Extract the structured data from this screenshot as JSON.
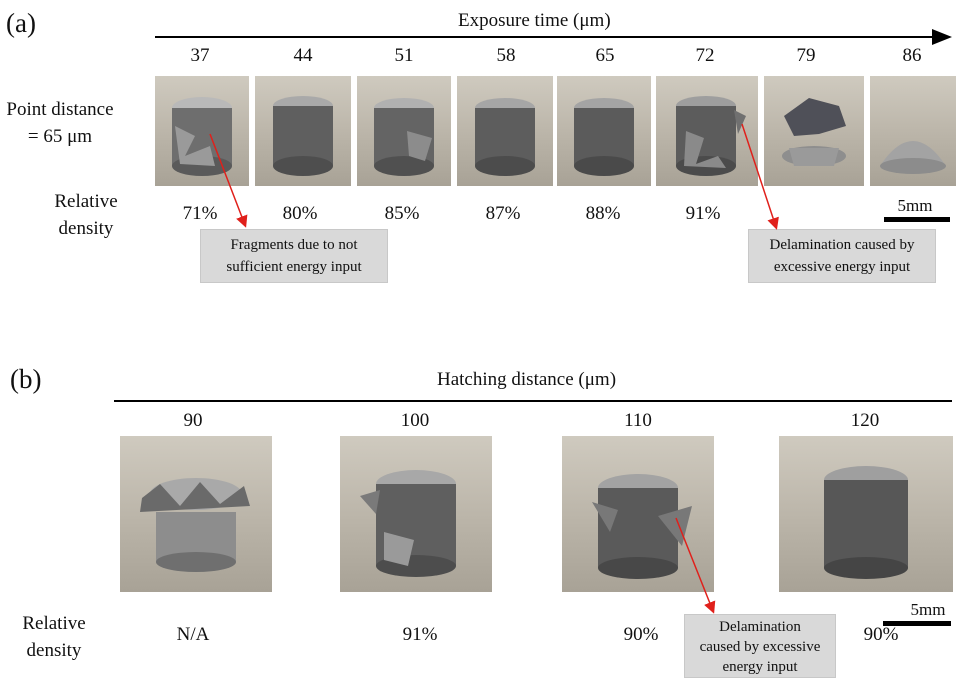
{
  "panel_a": {
    "label": "(a)",
    "axis_title": "Exposure time (μm)",
    "ticks": [
      "37",
      "44",
      "51",
      "58",
      "65",
      "72",
      "79",
      "86"
    ],
    "row_label_line1": "Point distance",
    "row_label_line2": "= 65 μm",
    "density_label_line1": "Relative",
    "density_label_line2": "density",
    "densities": [
      "71%",
      "80%",
      "85%",
      "87%",
      "88%",
      "91%"
    ],
    "callout_left_line1": "Fragments due to not",
    "callout_left_line2": "sufficient energy input",
    "callout_right_line1": "Delamination caused by",
    "callout_right_line2": "excessive energy input",
    "scale_label": "5mm"
  },
  "panel_b": {
    "label": "(b)",
    "axis_title": "Hatching distance (μm)",
    "ticks": [
      "90",
      "100",
      "110",
      "120"
    ],
    "density_label_line1": "Relative",
    "density_label_line2": "density",
    "densities": [
      "N/A",
      "91%",
      "90%",
      "90%"
    ],
    "callout_line1": "Delamination",
    "callout_line2": "caused by excessive",
    "callout_line3": "energy input",
    "scale_label": "5mm"
  },
  "colors": {
    "arrow": "#e0201b",
    "callout_bg": "#d9d9d9"
  }
}
